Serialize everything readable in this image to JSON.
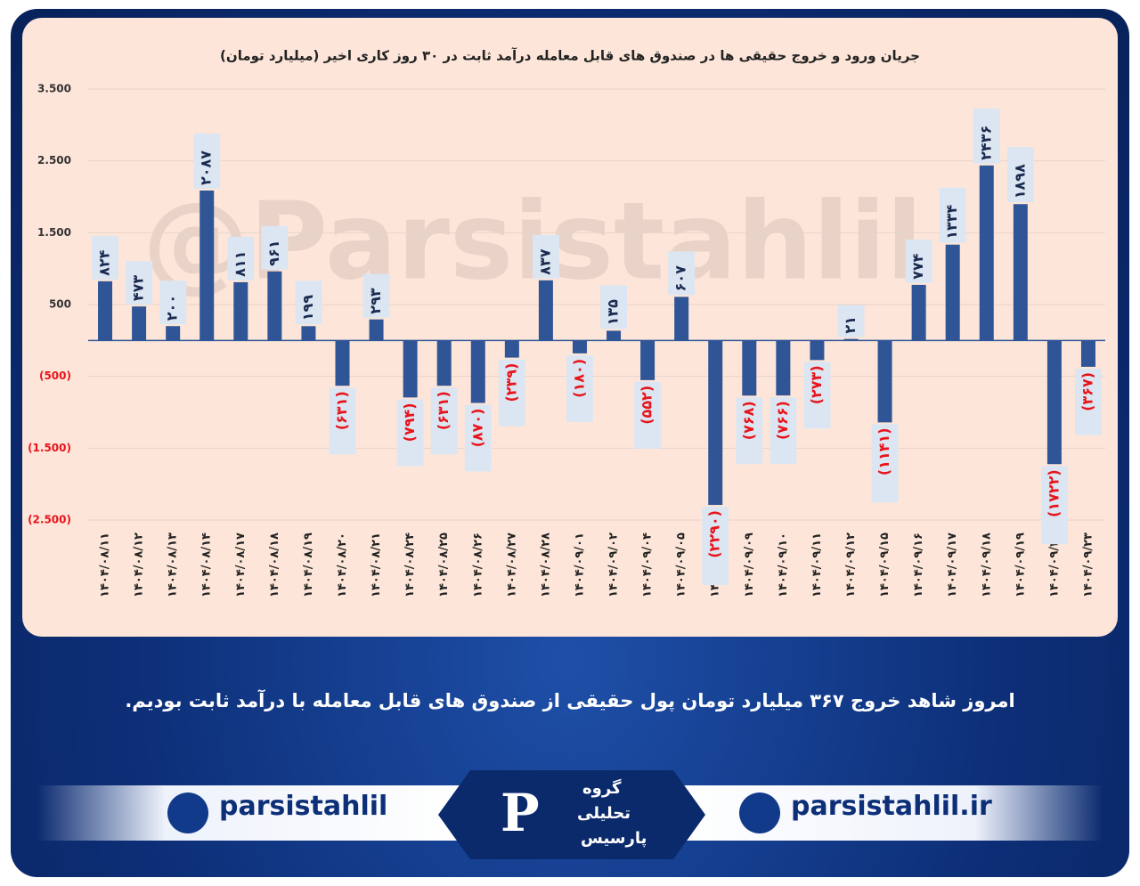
{
  "chart_data": {
    "type": "bar",
    "title": "جریان ورود و خروج حقیقی ها در صندوق های قابل معامله درآمد ثابت در ۳۰ روز کاری اخیر (میلیارد تومان)",
    "watermark": "@Parsistahlil",
    "categories": [
      "۱۴۰۴/۰۸/۱۱",
      "۱۴۰۴/۰۸/۱۲",
      "۱۴۰۴/۰۸/۱۳",
      "۱۴۰۴/۰۸/۱۴",
      "۱۴۰۴/۰۸/۱۷",
      "۱۴۰۴/۰۸/۱۸",
      "۱۴۰۴/۰۸/۱۹",
      "۱۴۰۴/۰۸/۲۰",
      "۱۴۰۴/۰۸/۲۱",
      "۱۴۰۴/۰۸/۲۴",
      "۱۴۰۴/۰۸/۲۵",
      "۱۴۰۴/۰۸/۲۶",
      "۱۴۰۴/۰۸/۲۷",
      "۱۴۰۴/۰۸/۲۸",
      "۱۴۰۴/۰۹/۰۱",
      "۱۴۰۴/۰۹/۰۲",
      "۱۴۰۴/۰۹/۰۴",
      "۱۴۰۴/۰۹/۰۵",
      "۱۴۰۴/۰۹/۰۸",
      "۱۴۰۴/۰۹/۰۹",
      "۱۴۰۴/۰۹/۱۰",
      "۱۴۰۴/۰۹/۱۱",
      "۱۴۰۴/۰۹/۱۲",
      "۱۴۰۴/۰۹/۱۵",
      "۱۴۰۴/۰۹/۱۶",
      "۱۴۰۴/۰۹/۱۷",
      "۱۴۰۴/۰۹/۱۸",
      "۱۴۰۴/۰۹/۱۹",
      "۱۴۰۴/۰۹/۲۲",
      "۱۴۰۴/۰۹/۲۳"
    ],
    "values": [
      824,
      473,
      200,
      2087,
      811,
      961,
      199,
      -631,
      293,
      -794,
      -631,
      -870,
      -239,
      837,
      -180,
      135,
      -552,
      607,
      -2290,
      -768,
      -766,
      -273,
      21,
      -1141,
      774,
      1334,
      2436,
      1898,
      -1722,
      -367
    ],
    "value_labels": [
      "۸۲۴",
      "۴۷۳",
      "۲۰۰",
      "۲۰۸۷",
      "۸۱۱",
      "۹۶۱",
      "۱۹۹",
      "(۶۳۱)",
      "۲۹۳",
      "(۷۹۴)",
      "(۶۳۱)",
      "(۸۷۰)",
      "(۲۳۹)",
      "۸۳۷",
      "(۱۸۰)",
      "۱۳۵",
      "(۵۵۲)",
      "۶۰۷",
      "(۲۲۹۰)",
      "(۷۶۸)",
      "(۷۶۶)",
      "(۲۷۳)",
      "۲۱",
      "(۱۱۴۱)",
      "۷۷۴",
      "۱۳۳۴",
      "۲۴۳۶",
      "۱۸۹۸",
      "(۱۷۲۲)",
      "(۳۶۷)"
    ],
    "color": "#2f5597",
    "negative_label_color": "#e8141b",
    "ylim": [
      -2500,
      3500
    ],
    "yticks": [
      {
        "value": 3500,
        "label": "3.500"
      },
      {
        "value": 2500,
        "label": "2.500"
      },
      {
        "value": 1500,
        "label": "1.500"
      },
      500,
      {
        "value": -500,
        "label": "(500)"
      },
      {
        "value": -1500,
        "label": "(1.500)"
      },
      {
        "value": -2500,
        "label": "(2.500)"
      }
    ],
    "grid": true
  },
  "caption": "امروز شاهد خروج ۳۶۷ میلیارد تومان پول حقیقی از صندوق های قابل معامله با درآمد ثابت بودیم.",
  "brand": {
    "telegram": "parsistahlil",
    "website": "parsistahlil.ir",
    "logo_lines": [
      "گروه",
      "تحلیلی",
      "پارسیس"
    ]
  }
}
